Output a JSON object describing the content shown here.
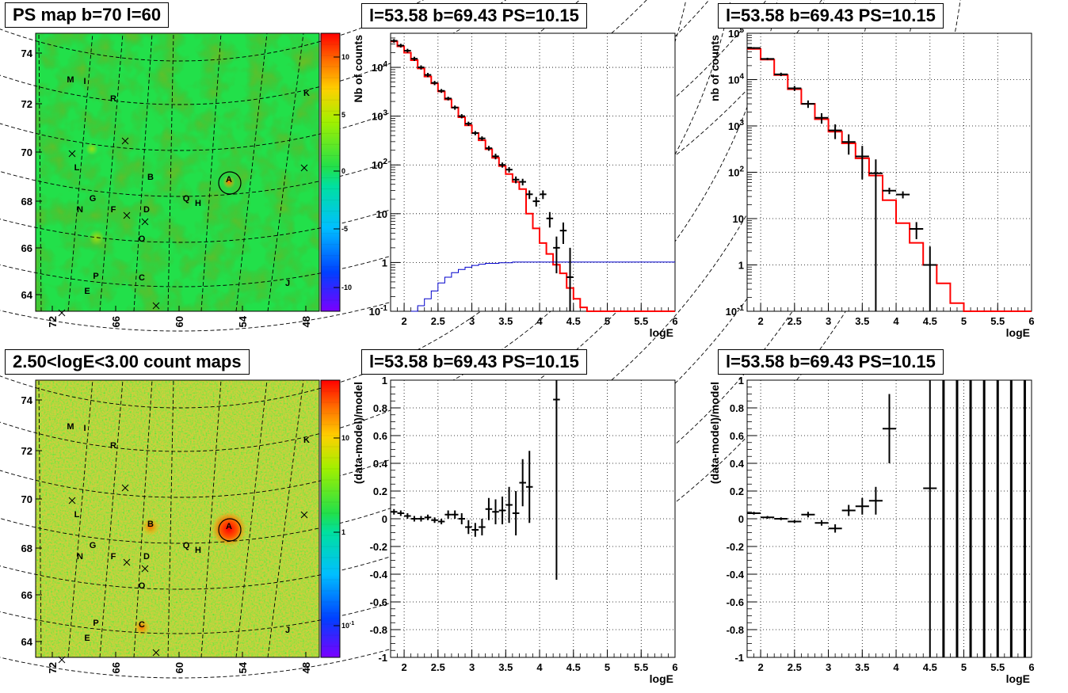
{
  "titles": {
    "map1": "PS map b=70 l=60",
    "map2": "2.50<logE<3.00 count maps",
    "spec1": "l=53.58 b=69.43 PS=10.15",
    "spec2": "l=53.58 b=69.43 PS=10.15",
    "res1": "l=53.58 b=69.43 PS=10.15",
    "res2": "l=53.58 b=69.43 PS=10.15"
  },
  "colors": {
    "data": "#000000",
    "model": "#ff0000",
    "exposure": "#0000cc",
    "map_bg": "#22e04a"
  },
  "chart_data": [
    {
      "id": "map1",
      "type": "heatmap",
      "title": "PS map b=70 l=60",
      "x_ticks": [
        "72",
        "66",
        "60",
        "54",
        "48"
      ],
      "y_ticks": [
        "64",
        "66",
        "68",
        "70",
        "72",
        "74"
      ],
      "z_ticks": [
        "10",
        "5",
        "0",
        "-5",
        "-10"
      ],
      "z_range": [
        -12,
        13
      ],
      "sources": [
        "M",
        "I",
        "R",
        "K",
        "L",
        "B",
        "A",
        "G",
        "N",
        "F",
        "D",
        "Q",
        "H",
        "O",
        "P",
        "C",
        "E",
        "J"
      ]
    },
    {
      "id": "map2",
      "type": "heatmap",
      "title": "2.50<logE<3.00 count maps",
      "x_ticks": [
        "72",
        "66",
        "60",
        "54",
        "48"
      ],
      "y_ticks": [
        "64",
        "66",
        "68",
        "70",
        "72",
        "74"
      ],
      "z_ticks": [
        "10",
        "1",
        "10^-1"
      ],
      "z_scale": "log",
      "sources": [
        "M",
        "I",
        "R",
        "K",
        "L",
        "B",
        "A",
        "G",
        "N",
        "F",
        "D",
        "Q",
        "H",
        "O",
        "P",
        "C",
        "E",
        "J"
      ]
    },
    {
      "id": "spec1",
      "type": "line",
      "title": "l=53.58 b=69.43 PS=10.15",
      "xlabel": "logE",
      "ylabel": "Nb of counts",
      "xlim": [
        1.8,
        6
      ],
      "ylim": [
        0.1,
        50000
      ],
      "yscale": "log",
      "x_ticks": [
        "2",
        "2.5",
        "3",
        "3.5",
        "4",
        "4.5",
        "5",
        "5.5",
        "6"
      ],
      "y_ticks": [
        "10^-1",
        "1",
        "10",
        "10^2",
        "10^3",
        "10^4"
      ],
      "series": [
        {
          "role": "data",
          "x": [
            1.85,
            1.95,
            2.05,
            2.15,
            2.25,
            2.35,
            2.45,
            2.55,
            2.65,
            2.75,
            2.85,
            2.95,
            3.05,
            3.15,
            3.25,
            3.35,
            3.45,
            3.55,
            3.65,
            3.75,
            3.85,
            3.95,
            4.05,
            4.15,
            4.25,
            4.35,
            4.45
          ],
          "y": [
            35000,
            28000,
            22000,
            15000,
            10000,
            7000,
            4800,
            3300,
            2300,
            1500,
            1000,
            700,
            450,
            350,
            220,
            150,
            100,
            80,
            50,
            45,
            25,
            18,
            25,
            8,
            2,
            4.5,
            0.5
          ],
          "err_low": [
            3000,
            2500,
            2000,
            1500,
            1000,
            700,
            480,
            300,
            200,
            150,
            100,
            70,
            45,
            35,
            25,
            20,
            12,
            10,
            8,
            7,
            5,
            4,
            5,
            2.8,
            1.4,
            2.1,
            0.5
          ],
          "err_high": [
            3000,
            2500,
            2000,
            1500,
            1000,
            700,
            480,
            300,
            200,
            150,
            100,
            70,
            45,
            35,
            25,
            20,
            12,
            10,
            8,
            7,
            5,
            4,
            5,
            2.8,
            1.4,
            2.1,
            1.5
          ]
        },
        {
          "role": "model",
          "edges": [
            1.8,
            1.9,
            2.0,
            2.1,
            2.2,
            2.3,
            2.4,
            2.5,
            2.6,
            2.7,
            2.8,
            2.9,
            3.0,
            3.1,
            3.2,
            3.3,
            3.4,
            3.5,
            3.6,
            3.7,
            3.8,
            3.9,
            4.0,
            4.1,
            4.2,
            4.3,
            4.4,
            4.5,
            4.6,
            4.7,
            4.8,
            6.0
          ],
          "y": [
            34000,
            27000,
            20000,
            14000,
            9500,
            6500,
            4700,
            3200,
            2200,
            1500,
            950,
            650,
            450,
            320,
            210,
            140,
            95,
            65,
            45,
            32,
            10,
            5,
            2.5,
            1.5,
            0.9,
            0.6,
            0.3,
            0.18,
            0.12,
            0.1,
            0.1
          ]
        },
        {
          "role": "exposure",
          "edges": [
            2.1,
            2.2,
            2.3,
            2.4,
            2.5,
            2.6,
            2.7,
            2.8,
            2.9,
            3.0,
            3.1,
            3.2,
            3.4,
            3.6,
            6.0
          ],
          "y": [
            0.1,
            0.13,
            0.18,
            0.26,
            0.38,
            0.5,
            0.62,
            0.72,
            0.8,
            0.87,
            0.92,
            0.96,
            0.99,
            1.02
          ]
        }
      ]
    },
    {
      "id": "spec2",
      "type": "line",
      "title": "l=53.58 b=69.43 PS=10.15",
      "xlabel": "logE",
      "ylabel": "nb of counts",
      "xlim": [
        1.8,
        6
      ],
      "ylim": [
        0.1,
        100000
      ],
      "yscale": "log",
      "x_ticks": [
        "2",
        "2.5",
        "3",
        "3.5",
        "4",
        "4.5",
        "5",
        "5.5",
        "6"
      ],
      "y_ticks": [
        "10^-1",
        "1",
        "10",
        "10^2",
        "10^3",
        "10^4",
        "10^5"
      ],
      "series": [
        {
          "role": "data",
          "x": [
            1.9,
            2.1,
            2.3,
            2.5,
            2.7,
            2.9,
            3.1,
            3.3,
            3.5,
            3.7,
            3.9,
            4.1,
            4.3,
            4.5
          ],
          "y": [
            48000,
            28000,
            13000,
            6500,
            3000,
            1500,
            800,
            450,
            220,
            95,
            40,
            33,
            6,
            1
          ],
          "err_low": [
            2000,
            1600,
            1100,
            800,
            550,
            380,
            280,
            210,
            150,
            95,
            6.3,
            5.7,
            2.4,
            1
          ],
          "err_high": [
            2000,
            1600,
            1100,
            800,
            550,
            380,
            280,
            210,
            150,
            95,
            6.3,
            5.7,
            2.4,
            1.5
          ]
        },
        {
          "role": "model",
          "edges": [
            1.8,
            2.0,
            2.2,
            2.4,
            2.6,
            2.8,
            3.0,
            3.2,
            3.4,
            3.6,
            3.8,
            4.0,
            4.2,
            4.4,
            4.6,
            4.8,
            5.0,
            6.0
          ],
          "y": [
            46000,
            27000,
            12500,
            6200,
            3000,
            1400,
            750,
            420,
            200,
            85,
            25,
            8,
            3,
            1,
            0.4,
            0.15,
            0.1
          ]
        }
      ]
    },
    {
      "id": "res1",
      "type": "scatter",
      "title": "l=53.58 b=69.43 PS=10.15",
      "xlabel": "logE",
      "ylabel": "(data-model)/model",
      "xlim": [
        1.8,
        6
      ],
      "ylim": [
        -1,
        1
      ],
      "x_ticks": [
        "2",
        "2.5",
        "3",
        "3.5",
        "4",
        "4.5",
        "5",
        "5.5",
        "6"
      ],
      "y_ticks": [
        "-1",
        "-0.8",
        "-0.6",
        "-0.4",
        "-0.2",
        "0",
        "0.2",
        "0.4",
        "0.6",
        "0.8",
        "1"
      ],
      "x": [
        1.85,
        1.95,
        2.05,
        2.15,
        2.25,
        2.35,
        2.45,
        2.55,
        2.65,
        2.75,
        2.85,
        2.95,
        3.05,
        3.15,
        3.25,
        3.35,
        3.45,
        3.55,
        3.65,
        3.75,
        3.85,
        4.25
      ],
      "y": [
        0.05,
        0.04,
        0.02,
        0.0,
        0.0,
        0.01,
        -0.01,
        -0.02,
        0.03,
        0.03,
        0.0,
        -0.06,
        -0.08,
        -0.06,
        0.07,
        0.05,
        0.06,
        0.1,
        0.04,
        0.26,
        0.23,
        0.86
      ],
      "err": [
        0.02,
        0.02,
        0.02,
        0.02,
        0.02,
        0.02,
        0.02,
        0.02,
        0.03,
        0.03,
        0.04,
        0.05,
        0.05,
        0.06,
        0.08,
        0.09,
        0.1,
        0.13,
        0.16,
        0.17,
        0.26,
        1.3
      ]
    },
    {
      "id": "res2",
      "type": "scatter",
      "title": "l=53.58 b=69.43 PS=10.15",
      "xlabel": "logE",
      "ylabel": "(data-model)/model",
      "xlim": [
        1.8,
        6
      ],
      "ylim": [
        -1,
        1
      ],
      "x_ticks": [
        "2",
        "2.5",
        "3",
        "3.5",
        "4",
        "4.5",
        "5",
        "5.5",
        "6"
      ],
      "y_ticks": [
        "-1",
        "-0.8",
        "-0.6",
        "-0.4",
        "-0.2",
        "0",
        "0.2",
        "0.4",
        "0.6",
        "0.8",
        "1"
      ],
      "x": [
        1.9,
        2.1,
        2.3,
        2.5,
        2.7,
        2.9,
        3.1,
        3.3,
        3.5,
        3.7,
        3.9,
        4.5
      ],
      "y": [
        0.04,
        0.01,
        0.0,
        -0.02,
        0.03,
        -0.03,
        -0.07,
        0.06,
        0.09,
        0.13,
        0.65,
        0.22
      ],
      "err": [
        0.01,
        0.01,
        0.01,
        0.01,
        0.02,
        0.02,
        0.03,
        0.04,
        0.06,
        0.1,
        0.25,
        2
      ],
      "full_span_bars_x": [
        4.7,
        4.9,
        5.1,
        5.3,
        5.5,
        5.7,
        5.9
      ]
    }
  ]
}
